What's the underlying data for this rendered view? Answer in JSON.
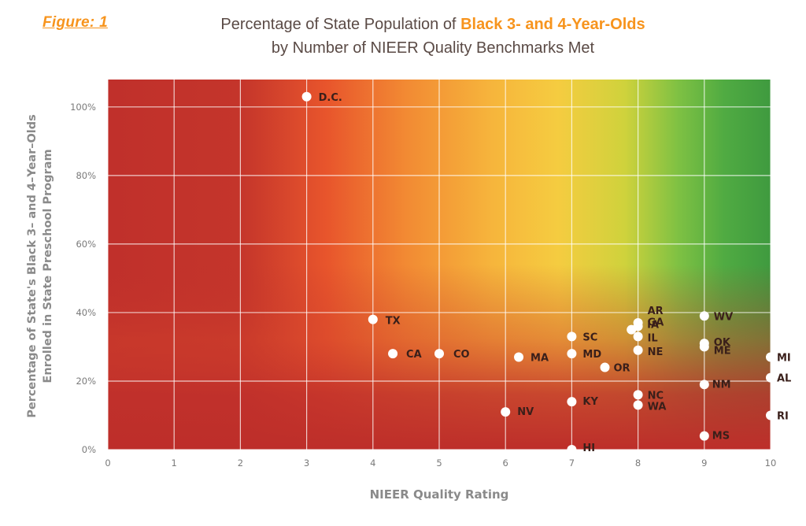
{
  "figure_label": "Figure: 1",
  "chart_data": {
    "type": "scatter",
    "title_line1_prefix": "Percentage of State Population of ",
    "title_line1_highlight": "Black 3- and 4-Year-Olds",
    "title_line2": "by Number of NIEER Quality Benchmarks Met",
    "xlabel": "NIEER Quality Rating",
    "ylabel_line1": "Percentage of State's Black 3– and 4–Year–Olds",
    "ylabel_line2": "Enrolled in State Preschool Program",
    "xlim": [
      0,
      10
    ],
    "ylim": [
      0,
      108
    ],
    "x_ticks": [
      "0",
      "1",
      "2",
      "3",
      "4",
      "5",
      "6",
      "7",
      "8",
      "9",
      "10"
    ],
    "y_ticks": [
      {
        "value": 0,
        "label": "0%"
      },
      {
        "value": 20,
        "label": "20%"
      },
      {
        "value": 40,
        "label": "40%"
      },
      {
        "value": 60,
        "label": "60%"
      },
      {
        "value": 80,
        "label": "80%"
      },
      {
        "value": 100,
        "label": "100%"
      }
    ],
    "grid": true,
    "background": "red-to-green gradient",
    "points": [
      {
        "label": "D.C.",
        "x": 3,
        "y": 103
      },
      {
        "label": "TX",
        "x": 4,
        "y": 38
      },
      {
        "label": "CA",
        "x": 4.3,
        "y": 28
      },
      {
        "label": "CO",
        "x": 5,
        "y": 28
      },
      {
        "label": "MA",
        "x": 6.2,
        "y": 27
      },
      {
        "label": "NV",
        "x": 6,
        "y": 11
      },
      {
        "label": "SC",
        "x": 7,
        "y": 33
      },
      {
        "label": "MD",
        "x": 7,
        "y": 28
      },
      {
        "label": "OR",
        "x": 7.5,
        "y": 24
      },
      {
        "label": "KY",
        "x": 7,
        "y": 14
      },
      {
        "label": "HI",
        "x": 7,
        "y": 0
      },
      {
        "label": "AR",
        "x": 8,
        "y": 37
      },
      {
        "label": "GA",
        "x": 8,
        "y": 36
      },
      {
        "label": "IA",
        "x": 7.9,
        "y": 35
      },
      {
        "label": "IL",
        "x": 8,
        "y": 33
      },
      {
        "label": "NE",
        "x": 8,
        "y": 29
      },
      {
        "label": "NC",
        "x": 8,
        "y": 16
      },
      {
        "label": "WA",
        "x": 8,
        "y": 13
      },
      {
        "label": "WV",
        "x": 9,
        "y": 39
      },
      {
        "label": "OK",
        "x": 9,
        "y": 31
      },
      {
        "label": "ME",
        "x": 9,
        "y": 30
      },
      {
        "label": "NM",
        "x": 9,
        "y": 19
      },
      {
        "label": "MS",
        "x": 9,
        "y": 4
      },
      {
        "label": "MI",
        "x": 10,
        "y": 27
      },
      {
        "label": "AL",
        "x": 10,
        "y": 21
      },
      {
        "label": "RI",
        "x": 10,
        "y": 10
      }
    ]
  },
  "colors": {
    "accent": "#f7941d",
    "red": "#c0302b",
    "orange": "#f07a2e",
    "yellow": "#f5c842",
    "green": "#4aa843",
    "title_text": "#5a4a45"
  }
}
